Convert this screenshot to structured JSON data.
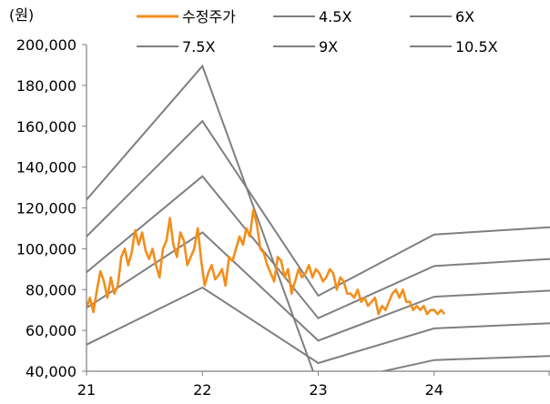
{
  "chart_data": {
    "type": "line",
    "unit_label": "(원)",
    "x_ticks": [
      "21",
      "22",
      "23",
      "24"
    ],
    "y_ticks": [
      "40,000",
      "60,000",
      "80,000",
      "100,000",
      "120,000",
      "140,000",
      "160,000",
      "180,000",
      "200,000"
    ],
    "ylim": [
      40000,
      200000
    ],
    "xlim": [
      2021.0,
      2025.0
    ],
    "grid": false,
    "legend_position": "top",
    "bands": [
      {
        "name": "4.5X",
        "x": [
          2021.0,
          2022.0,
          2023.0,
          2024.0,
          2025.0
        ],
        "y": [
          53000,
          81000,
          44000,
          61000,
          63500
        ]
      },
      {
        "name": "6X",
        "x": [
          2021.0,
          2022.0,
          2023.0,
          2024.0,
          2025.0
        ],
        "y": [
          71000,
          108000,
          55000,
          76500,
          79500
        ]
      },
      {
        "name": "7.5X",
        "x": [
          2021.0,
          2022.0,
          2023.0,
          2024.0,
          2025.0
        ],
        "y": [
          88500,
          135500,
          66000,
          91500,
          95000
        ]
      },
      {
        "name": "9X",
        "x": [
          2021.0,
          2022.0,
          2023.0,
          2024.0,
          2025.0
        ],
        "y": [
          106000,
          162500,
          77000,
          107000,
          110500
        ]
      },
      {
        "name": "10.5X",
        "x": [
          2021.0,
          2022.0,
          2023.0,
          2024.0,
          2025.0
        ],
        "y": [
          124000,
          189500,
          33000,
          45500,
          47500
        ]
      }
    ],
    "price": {
      "name": "수정주가",
      "x": [
        2021.0,
        2021.03,
        2021.06,
        2021.09,
        2021.12,
        2021.15,
        2021.18,
        2021.21,
        2021.24,
        2021.27,
        2021.3,
        2021.33,
        2021.36,
        2021.39,
        2021.42,
        2021.45,
        2021.48,
        2021.51,
        2021.54,
        2021.57,
        2021.6,
        2021.63,
        2021.66,
        2021.69,
        2021.72,
        2021.75,
        2021.78,
        2021.81,
        2021.84,
        2021.87,
        2021.9,
        2021.93,
        2021.96,
        2021.99,
        2022.02,
        2022.05,
        2022.08,
        2022.11,
        2022.14,
        2022.17,
        2022.2,
        2022.23,
        2022.26,
        2022.29,
        2022.32,
        2022.35,
        2022.38,
        2022.41,
        2022.44,
        2022.47,
        2022.5,
        2022.53,
        2022.56,
        2022.59,
        2022.62,
        2022.65,
        2022.68,
        2022.71,
        2022.74,
        2022.77,
        2022.8,
        2022.83,
        2022.86,
        2022.89,
        2022.92,
        2022.95,
        2022.98,
        2023.01,
        2023.04,
        2023.07,
        2023.1,
        2023.13,
        2023.16,
        2023.19,
        2023.22,
        2023.25,
        2023.28,
        2023.31,
        2023.34,
        2023.37,
        2023.4,
        2023.43,
        2023.46,
        2023.49,
        2023.52,
        2023.55,
        2023.58,
        2023.61,
        2023.64,
        2023.67,
        2023.7,
        2023.73,
        2023.76,
        2023.79,
        2023.82,
        2023.85,
        2023.88,
        2023.91,
        2023.94,
        2023.97,
        2024.0,
        2024.03,
        2024.06,
        2024.09
      ],
      "y": [
        71000,
        76000,
        69000,
        80000,
        89000,
        84000,
        76000,
        86000,
        78000,
        82000,
        96000,
        100000,
        92000,
        98000,
        109000,
        102000,
        108000,
        99000,
        95000,
        100000,
        92000,
        86000,
        100000,
        104000,
        115000,
        102000,
        96000,
        108000,
        104000,
        92000,
        96000,
        100000,
        110000,
        94000,
        82000,
        88000,
        92000,
        85000,
        87000,
        90000,
        82000,
        96000,
        94000,
        100000,
        106000,
        102000,
        110000,
        106000,
        119000,
        112000,
        100000,
        98000,
        92000,
        88000,
        84000,
        96000,
        94000,
        86000,
        90000,
        78000,
        84000,
        90000,
        86000,
        88000,
        92000,
        86000,
        90000,
        88000,
        84000,
        86000,
        90000,
        88000,
        80000,
        86000,
        84000,
        78000,
        78000,
        76000,
        80000,
        74000,
        76000,
        72000,
        74000,
        76000,
        68000,
        72000,
        70000,
        74000,
        78000,
        80000,
        76000,
        80000,
        74000,
        74000,
        70000,
        72000,
        70000,
        72000,
        68000,
        70000,
        70000,
        68000,
        70000,
        68000
      ]
    }
  }
}
